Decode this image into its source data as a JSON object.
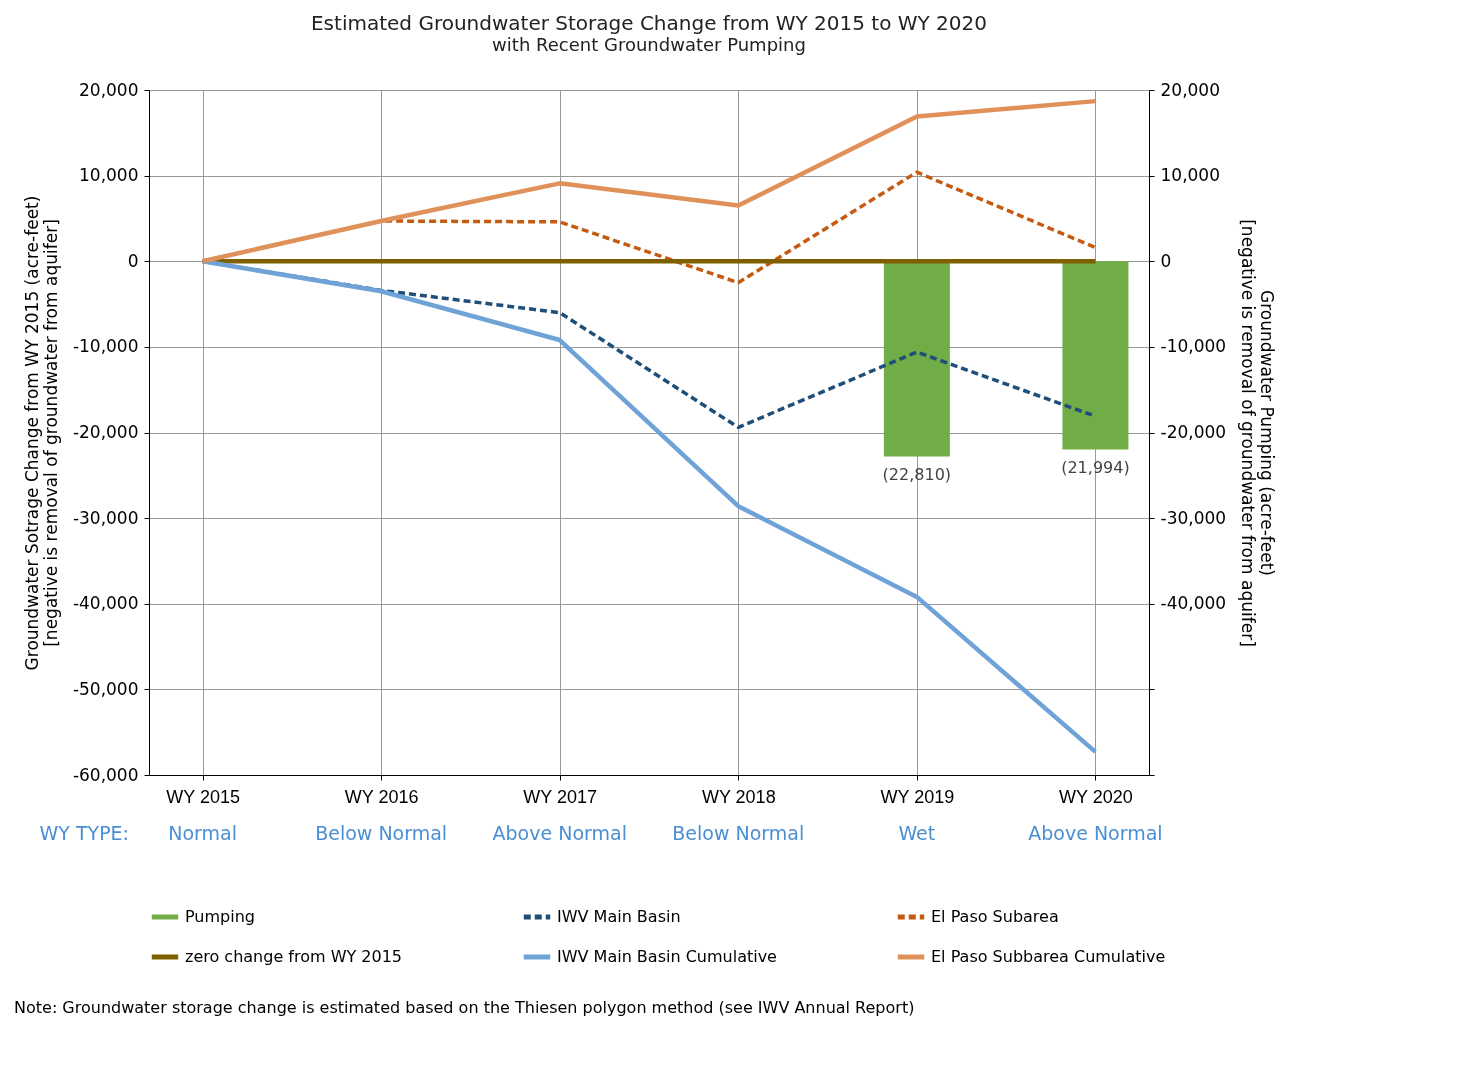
{
  "chart_data": {
    "type": "line",
    "title": "Estimated Groundwater Storage Change from WY 2015 to WY 2020",
    "subtitle": "with Recent Groundwater Pumping",
    "ylabel": "Groundwater Sotrage Change from WY 2015  (acre-feet)\n[negative is removal of groundwater from aquifer]",
    "y2label": "Groundwater Pumping  (acre-feet)\n[negative is removal of groundwater from aquifer]",
    "categories": [
      "WY 2015",
      "WY 2016",
      "WY 2017",
      "WY 2018",
      "WY 2019",
      "WY 2020"
    ],
    "series": [
      {
        "name": "Pumping",
        "type": "bar",
        "axis": "y2",
        "color": "#70ad47",
        "values": [
          null,
          null,
          null,
          null,
          -22810,
          -21994
        ],
        "value_labels": [
          null,
          null,
          null,
          null,
          "(22,810)",
          "(21,994)"
        ]
      },
      {
        "name": "IWV Main Basin",
        "color": "#1f4e79",
        "line_style": "dashed",
        "values": [
          0,
          -3400,
          -6000,
          -19400,
          -10600,
          -18100
        ]
      },
      {
        "name": "El Paso Subarea",
        "color": "#c55a11",
        "line_style": "dashed",
        "values": [
          0,
          4700,
          4600,
          -2500,
          10400,
          1600
        ]
      },
      {
        "name": "zero change from WY 2015",
        "color": "#7f6000",
        "line_style": "solid",
        "values": [
          0,
          0,
          0,
          0,
          0,
          0
        ]
      },
      {
        "name": "IWV Main Basin Cumulative",
        "color": "#6fa3d8",
        "line_style": "solid",
        "values": [
          0,
          -3500,
          -9200,
          -28600,
          -39200,
          -57300
        ]
      },
      {
        "name": "El Paso Subbarea Cumulative",
        "color": "#e0915a",
        "line_style": "solid",
        "values": [
          0,
          4700,
          9100,
          6500,
          16900,
          18700
        ]
      }
    ],
    "ylim": [
      -60000,
      20000
    ],
    "yticks": [
      {
        "value": -60000,
        "label": "-60,000"
      },
      {
        "value": -50000,
        "label": "-50,000"
      },
      {
        "value": -40000,
        "label": "-40,000"
      },
      {
        "value": -30000,
        "label": "-30,000"
      },
      {
        "value": -20000,
        "label": "-20,000"
      },
      {
        "value": -10000,
        "label": "-10,000"
      },
      0,
      {
        "value": 10000,
        "label": "10,000"
      },
      {
        "value": 20000,
        "label": "20,000"
      }
    ],
    "y2lim": [
      -60000,
      20000
    ],
    "y2ticks": [
      {
        "value": -60000,
        "label": null
      },
      {
        "value": -50000,
        "label": null
      },
      {
        "value": -40000,
        "label": "-40,000"
      },
      {
        "value": -30000,
        "label": "-30,000"
      },
      {
        "value": -20000,
        "label": "-20,000"
      },
      {
        "value": -10000,
        "label": "-10,000"
      },
      0,
      {
        "value": 10000,
        "label": "10,000"
      },
      {
        "value": 20000,
        "label": "20,000"
      }
    ],
    "grid": true,
    "legend": "bottom",
    "marker": "none",
    "annotations": [
      "WY TYPE:",
      "Normal",
      "Below Normal",
      "Above Normal",
      "Below Normal",
      "Wet",
      "Above Normal",
      "Note:  Groundwater storage change is estimated based on the Thiesen polygon method (see IWV Annual Report)"
    ]
  }
}
